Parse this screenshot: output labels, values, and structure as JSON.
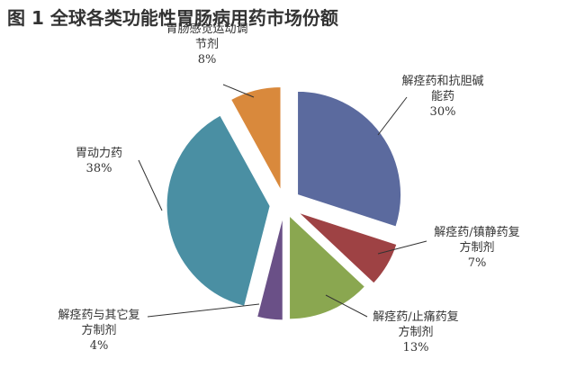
{
  "figure_title": "图 1  全球各类功能性胃肠病用药市场份额",
  "chart_data": {
    "type": "pie",
    "title": "图 1  全球各类功能性胃肠病用药市场份额",
    "slices": [
      {
        "label_lines": [
          "解痉药和抗胆碱",
          "能药"
        ],
        "value": 30,
        "percent_label": "30%",
        "color": "#5B6A9E"
      },
      {
        "label_lines": [
          "解痉药/镇静药复",
          "方制剂"
        ],
        "value": 7,
        "percent_label": "7%",
        "color": "#9E4244"
      },
      {
        "label_lines": [
          "解痉药/止痛药复",
          "方制剂"
        ],
        "value": 13,
        "percent_label": "13%",
        "color": "#8AA750"
      },
      {
        "label_lines": [
          "解痉药与其它复",
          "方制剂"
        ],
        "value": 4,
        "percent_label": "4%",
        "color": "#6A5087"
      },
      {
        "label_lines": [
          "胃动力药"
        ],
        "value": 38,
        "percent_label": "38%",
        "color": "#4A8FA3"
      },
      {
        "label_lines": [
          "胃肠感觉运动调",
          "节剂"
        ],
        "value": 8,
        "percent_label": "8%",
        "color": "#D9893C"
      }
    ]
  }
}
